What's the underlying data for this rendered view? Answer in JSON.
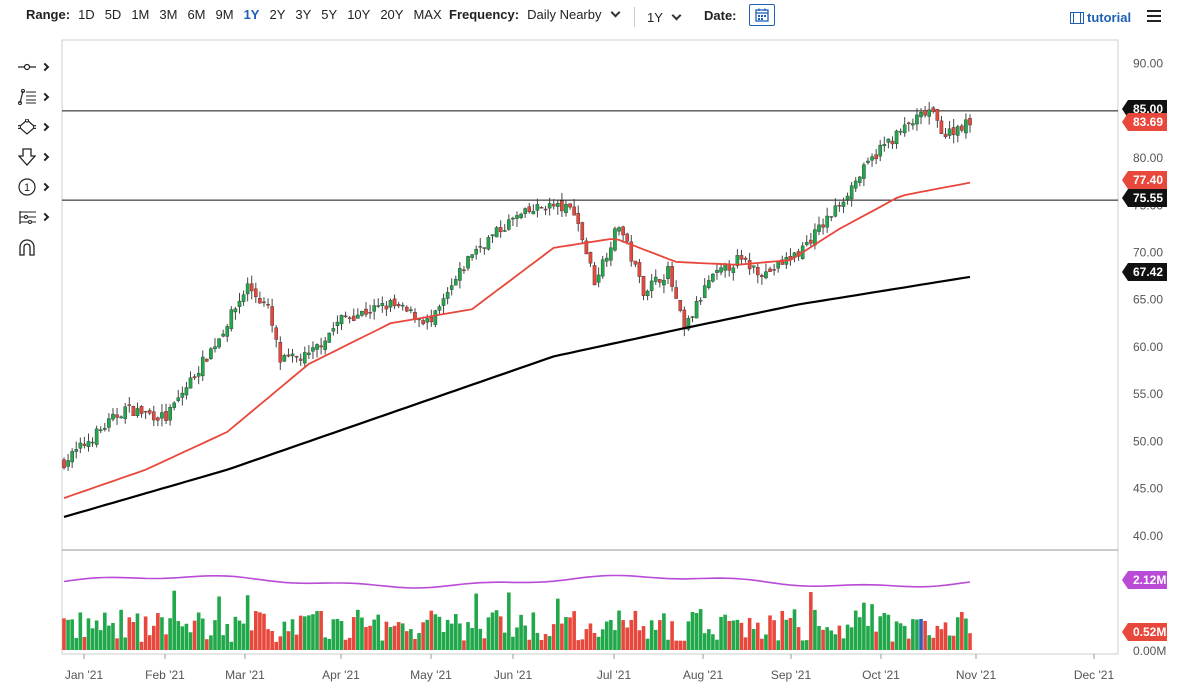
{
  "toolbar": {
    "range_label": "Range:",
    "ranges": [
      "1D",
      "5D",
      "1M",
      "3M",
      "6M",
      "9M",
      "1Y",
      "2Y",
      "3Y",
      "5Y",
      "10Y",
      "20Y",
      "MAX"
    ],
    "active_range": "1Y",
    "frequency_label": "Frequency:",
    "frequency_value": "Daily Nearby",
    "period_value": "1Y",
    "date_label": "Date:",
    "tutorial_label": "tutorial"
  },
  "tools": [
    "crosshair-tool-icon",
    "fib-lines-tool-icon",
    "shapes-tool-icon",
    "arrow-down-tool-icon",
    "numbered-marker-icon",
    "pitchfork-tool-icon",
    "magnet-icon"
  ],
  "colors": {
    "up": "#21a84a",
    "down": "#e8473b",
    "sma_short": "#e8473b",
    "sma_long": "#000000",
    "volume_ma": "#b94bd6",
    "tag_red": "#e8473b",
    "tag_black": "#111111",
    "tag_purple": "#b94bd6",
    "highlight_bar": "#2f5fbf"
  },
  "chart_data": {
    "type": "candlestick",
    "x_ticks": [
      "Jan '21",
      "Feb '21",
      "Mar '21",
      "Apr '21",
      "May '21",
      "Jun '21",
      "Jul '21",
      "Aug '21",
      "Sep '21",
      "Oct '21",
      "Nov '21",
      "Dec '21"
    ],
    "y_ticks": [
      "90.00",
      "85.00",
      "80.00",
      "75.00",
      "70.00",
      "65.00",
      "60.00",
      "55.00",
      "50.00",
      "45.00",
      "40.00"
    ],
    "ylim": [
      38.5,
      92.5
    ],
    "close_series_anchors": [
      [
        0,
        47.8
      ],
      [
        15,
        53.5
      ],
      [
        25,
        52.5
      ],
      [
        38,
        61
      ],
      [
        45,
        66.5
      ],
      [
        50,
        64
      ],
      [
        53,
        58.5
      ],
      [
        60,
        59
      ],
      [
        68,
        63
      ],
      [
        80,
        64.5
      ],
      [
        90,
        62.5
      ],
      [
        100,
        70
      ],
      [
        110,
        73.5
      ],
      [
        118,
        75
      ],
      [
        125,
        74.5
      ],
      [
        130,
        67
      ],
      [
        136,
        73
      ],
      [
        142,
        66
      ],
      [
        148,
        68
      ],
      [
        152,
        61.7
      ],
      [
        158,
        67
      ],
      [
        165,
        69.2
      ],
      [
        172,
        67.8
      ],
      [
        180,
        70
      ],
      [
        188,
        74
      ],
      [
        193,
        77
      ],
      [
        200,
        81
      ],
      [
        207,
        83.5
      ],
      [
        212,
        85.0
      ],
      [
        216,
        82.5
      ],
      [
        220,
        83.5
      ],
      [
        222,
        83.69
      ]
    ],
    "sma50_anchors": [
      [
        0,
        44
      ],
      [
        20,
        47
      ],
      [
        40,
        51
      ],
      [
        60,
        58.2
      ],
      [
        80,
        62.5
      ],
      [
        100,
        64
      ],
      [
        120,
        70.5
      ],
      [
        135,
        71.5
      ],
      [
        150,
        69
      ],
      [
        165,
        68.7
      ],
      [
        178,
        69.2
      ],
      [
        190,
        72.5
      ],
      [
        205,
        76
      ],
      [
        222,
        77.4
      ]
    ],
    "sma200_anchors": [
      [
        0,
        42
      ],
      [
        40,
        47
      ],
      [
        80,
        53
      ],
      [
        120,
        59
      ],
      [
        150,
        61.8
      ],
      [
        180,
        64.5
      ],
      [
        222,
        67.42
      ]
    ],
    "horizontal_lines": [
      85.0,
      75.55
    ],
    "price_tags": [
      {
        "label": "85.00",
        "value": 85.0,
        "style": "black"
      },
      {
        "label": "83.69",
        "value": 83.69,
        "style": "red"
      },
      {
        "label": "77.40",
        "value": 77.4,
        "style": "red"
      },
      {
        "label": "75.55",
        "value": 75.55,
        "style": "black"
      },
      {
        "label": "67.42",
        "value": 67.42,
        "style": "black"
      }
    ],
    "volume": {
      "y_ticks": [
        "0.00M"
      ],
      "ylim": [
        0,
        2.6
      ],
      "ma_value": 2.12,
      "last_value": 0.52,
      "tags": [
        {
          "label": "2.12M",
          "style": "purple"
        },
        {
          "label": "0.52M",
          "style": "red"
        }
      ]
    },
    "grid": false
  }
}
